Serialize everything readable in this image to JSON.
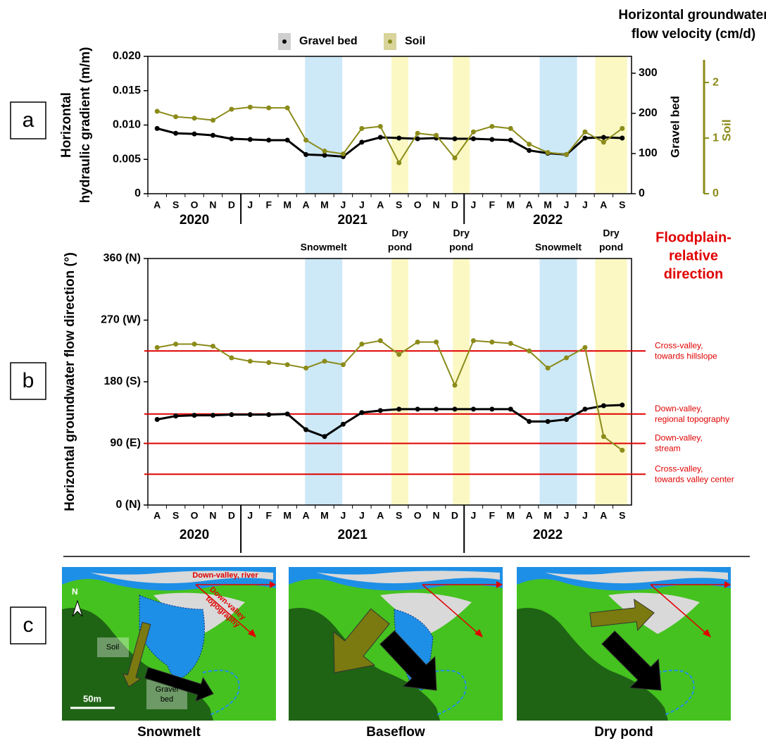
{
  "panel_labels": [
    "a",
    "b",
    "c"
  ],
  "chart_data": [
    {
      "type": "line",
      "y_label": [
        "Horizontal",
        "hydraulic gradient (m/m)"
      ],
      "categories": [
        "A",
        "S",
        "O",
        "N",
        "D",
        "J",
        "F",
        "M",
        "A",
        "M",
        "J",
        "J",
        "A",
        "S",
        "O",
        "N",
        "D",
        "J",
        "F",
        "M",
        "A",
        "M",
        "J",
        "J",
        "A",
        "S"
      ],
      "years": [
        "2020",
        "2021",
        "2022"
      ],
      "series": [
        {
          "name": "Gravel bed",
          "color": "#000000",
          "values": [
            0.0095,
            0.0088,
            0.0087,
            0.0085,
            0.008,
            0.0079,
            0.0078,
            0.0078,
            0.0057,
            0.0056,
            0.0054,
            0.0075,
            0.0082,
            0.0081,
            0.008,
            0.0081,
            0.008,
            0.008,
            0.0079,
            0.0078,
            0.0063,
            0.0059,
            0.0057,
            0.0081,
            0.0082,
            0.0081
          ]
        },
        {
          "name": "Soil",
          "color": "#8b8b1a",
          "values": [
            0.012,
            0.0112,
            0.011,
            0.0107,
            0.0123,
            0.0126,
            0.0125,
            0.0125,
            0.0078,
            0.0062,
            0.0058,
            0.0095,
            0.0098,
            0.0045,
            0.0088,
            0.0085,
            0.0052,
            0.009,
            0.0098,
            0.0095,
            0.0072,
            0.006,
            0.0057,
            0.009,
            0.0075,
            0.0095
          ]
        }
      ],
      "ylim": [
        0,
        0.02
      ],
      "yticks": [
        0,
        0.005,
        {
          "value": 0.01,
          "label": "0.010"
        },
        0.015,
        {
          "value": 0.02,
          "label": "0.020"
        }
      ],
      "y2lim": [
        0,
        342
      ],
      "y2ticks": [
        0,
        100,
        200,
        300
      ],
      "y2label": "Gravel bed",
      "y3lim": [
        0,
        2.47
      ],
      "y3ticks": [
        0,
        1,
        2
      ],
      "y3label": "Soil",
      "y3color": "#8b8b1a",
      "velocity_title": [
        "Horizontal groundwater",
        "flow velocity (cm/d)"
      ],
      "bands": [
        {
          "start": 8.45,
          "end": 10.45,
          "color": "#cde8f7"
        },
        {
          "start": 13.1,
          "end": 14.0,
          "color": "#fbf8c4"
        },
        {
          "start": 16.4,
          "end": 17.3,
          "color": "#fbf8c4"
        },
        {
          "start": 21.06,
          "end": 23.07,
          "color": "#cde8f7"
        },
        {
          "start": 24.05,
          "end": 25.76,
          "color": "#fbf8c4"
        }
      ]
    },
    {
      "type": "line",
      "y_label": [
        "Horizontal groundwater flow direction (°)"
      ],
      "categories": [
        "A",
        "S",
        "O",
        "N",
        "D",
        "J",
        "F",
        "M",
        "A",
        "M",
        "J",
        "J",
        "A",
        "S",
        "O",
        "N",
        "D",
        "J",
        "F",
        "M",
        "A",
        "M",
        "J",
        "J",
        "A",
        "S"
      ],
      "years": [
        "2020",
        "2021",
        "2022"
      ],
      "series": [
        {
          "name": "Gravel bed",
          "color": "#000000",
          "values": [
            125,
            130,
            131,
            131,
            132,
            132,
            132,
            133,
            110,
            100,
            118,
            135,
            138,
            140,
            140,
            140,
            140,
            140,
            140,
            140,
            122,
            122,
            125,
            140,
            145,
            146
          ]
        },
        {
          "name": "Soil",
          "color": "#8b8b1a",
          "values": [
            230,
            235,
            235,
            232,
            215,
            210,
            208,
            205,
            200,
            210,
            205,
            235,
            240,
            220,
            238,
            238,
            175,
            240,
            238,
            236,
            225,
            200,
            215,
            230,
            100,
            80
          ]
        }
      ],
      "ylim": [
        0,
        360
      ],
      "yticks": [
        {
          "value": 0,
          "label": "0 (N)"
        },
        {
          "value": 90,
          "label": "90 (E)"
        },
        {
          "value": 180,
          "label": "180 (S)"
        },
        {
          "value": 270,
          "label": "270 (W)"
        },
        {
          "value": 360,
          "label": "360 (N)"
        }
      ],
      "bands": [
        {
          "start": 8.45,
          "end": 10.45,
          "color": "#cde8f7",
          "label": [
            "Snowmelt"
          ]
        },
        {
          "start": 13.1,
          "end": 14.0,
          "color": "#fbf8c4",
          "label": [
            "Dry",
            "pond"
          ]
        },
        {
          "start": 16.4,
          "end": 17.3,
          "color": "#fbf8c4",
          "label": [
            "Dry",
            "pond"
          ]
        },
        {
          "start": 21.06,
          "end": 23.07,
          "color": "#cde8f7",
          "label": [
            "Snowmelt"
          ]
        },
        {
          "start": 24.05,
          "end": 25.76,
          "color": "#fbf8c4",
          "label": [
            "Dry",
            "pond"
          ]
        }
      ],
      "reference_title": [
        "Floodplain-",
        "relative",
        "direction"
      ],
      "reference_color": "#e00000",
      "reference_lines": [
        {
          "value": 225,
          "label": [
            "Cross-valley,",
            "towards hillslope"
          ]
        },
        {
          "value": 133,
          "label": [
            "Down-valley,",
            "regional topography"
          ]
        },
        {
          "value": 90,
          "label": [
            "Down-valley,",
            "stream"
          ]
        },
        {
          "value": 45,
          "label": [
            "Cross-valley,",
            "towards valley center"
          ]
        }
      ]
    }
  ],
  "diagram": {
    "north": "N",
    "scale": "50m",
    "maps": [
      {
        "title": "Snowmelt",
        "soil_label": "Soil",
        "gravel_label": [
          "Gravel",
          "bed"
        ],
        "river_label": "Down-valley, river",
        "topography_label": [
          "Down-valley",
          "topography"
        ]
      },
      {
        "title": "Baseflow"
      },
      {
        "title": "Dry pond"
      }
    ]
  }
}
